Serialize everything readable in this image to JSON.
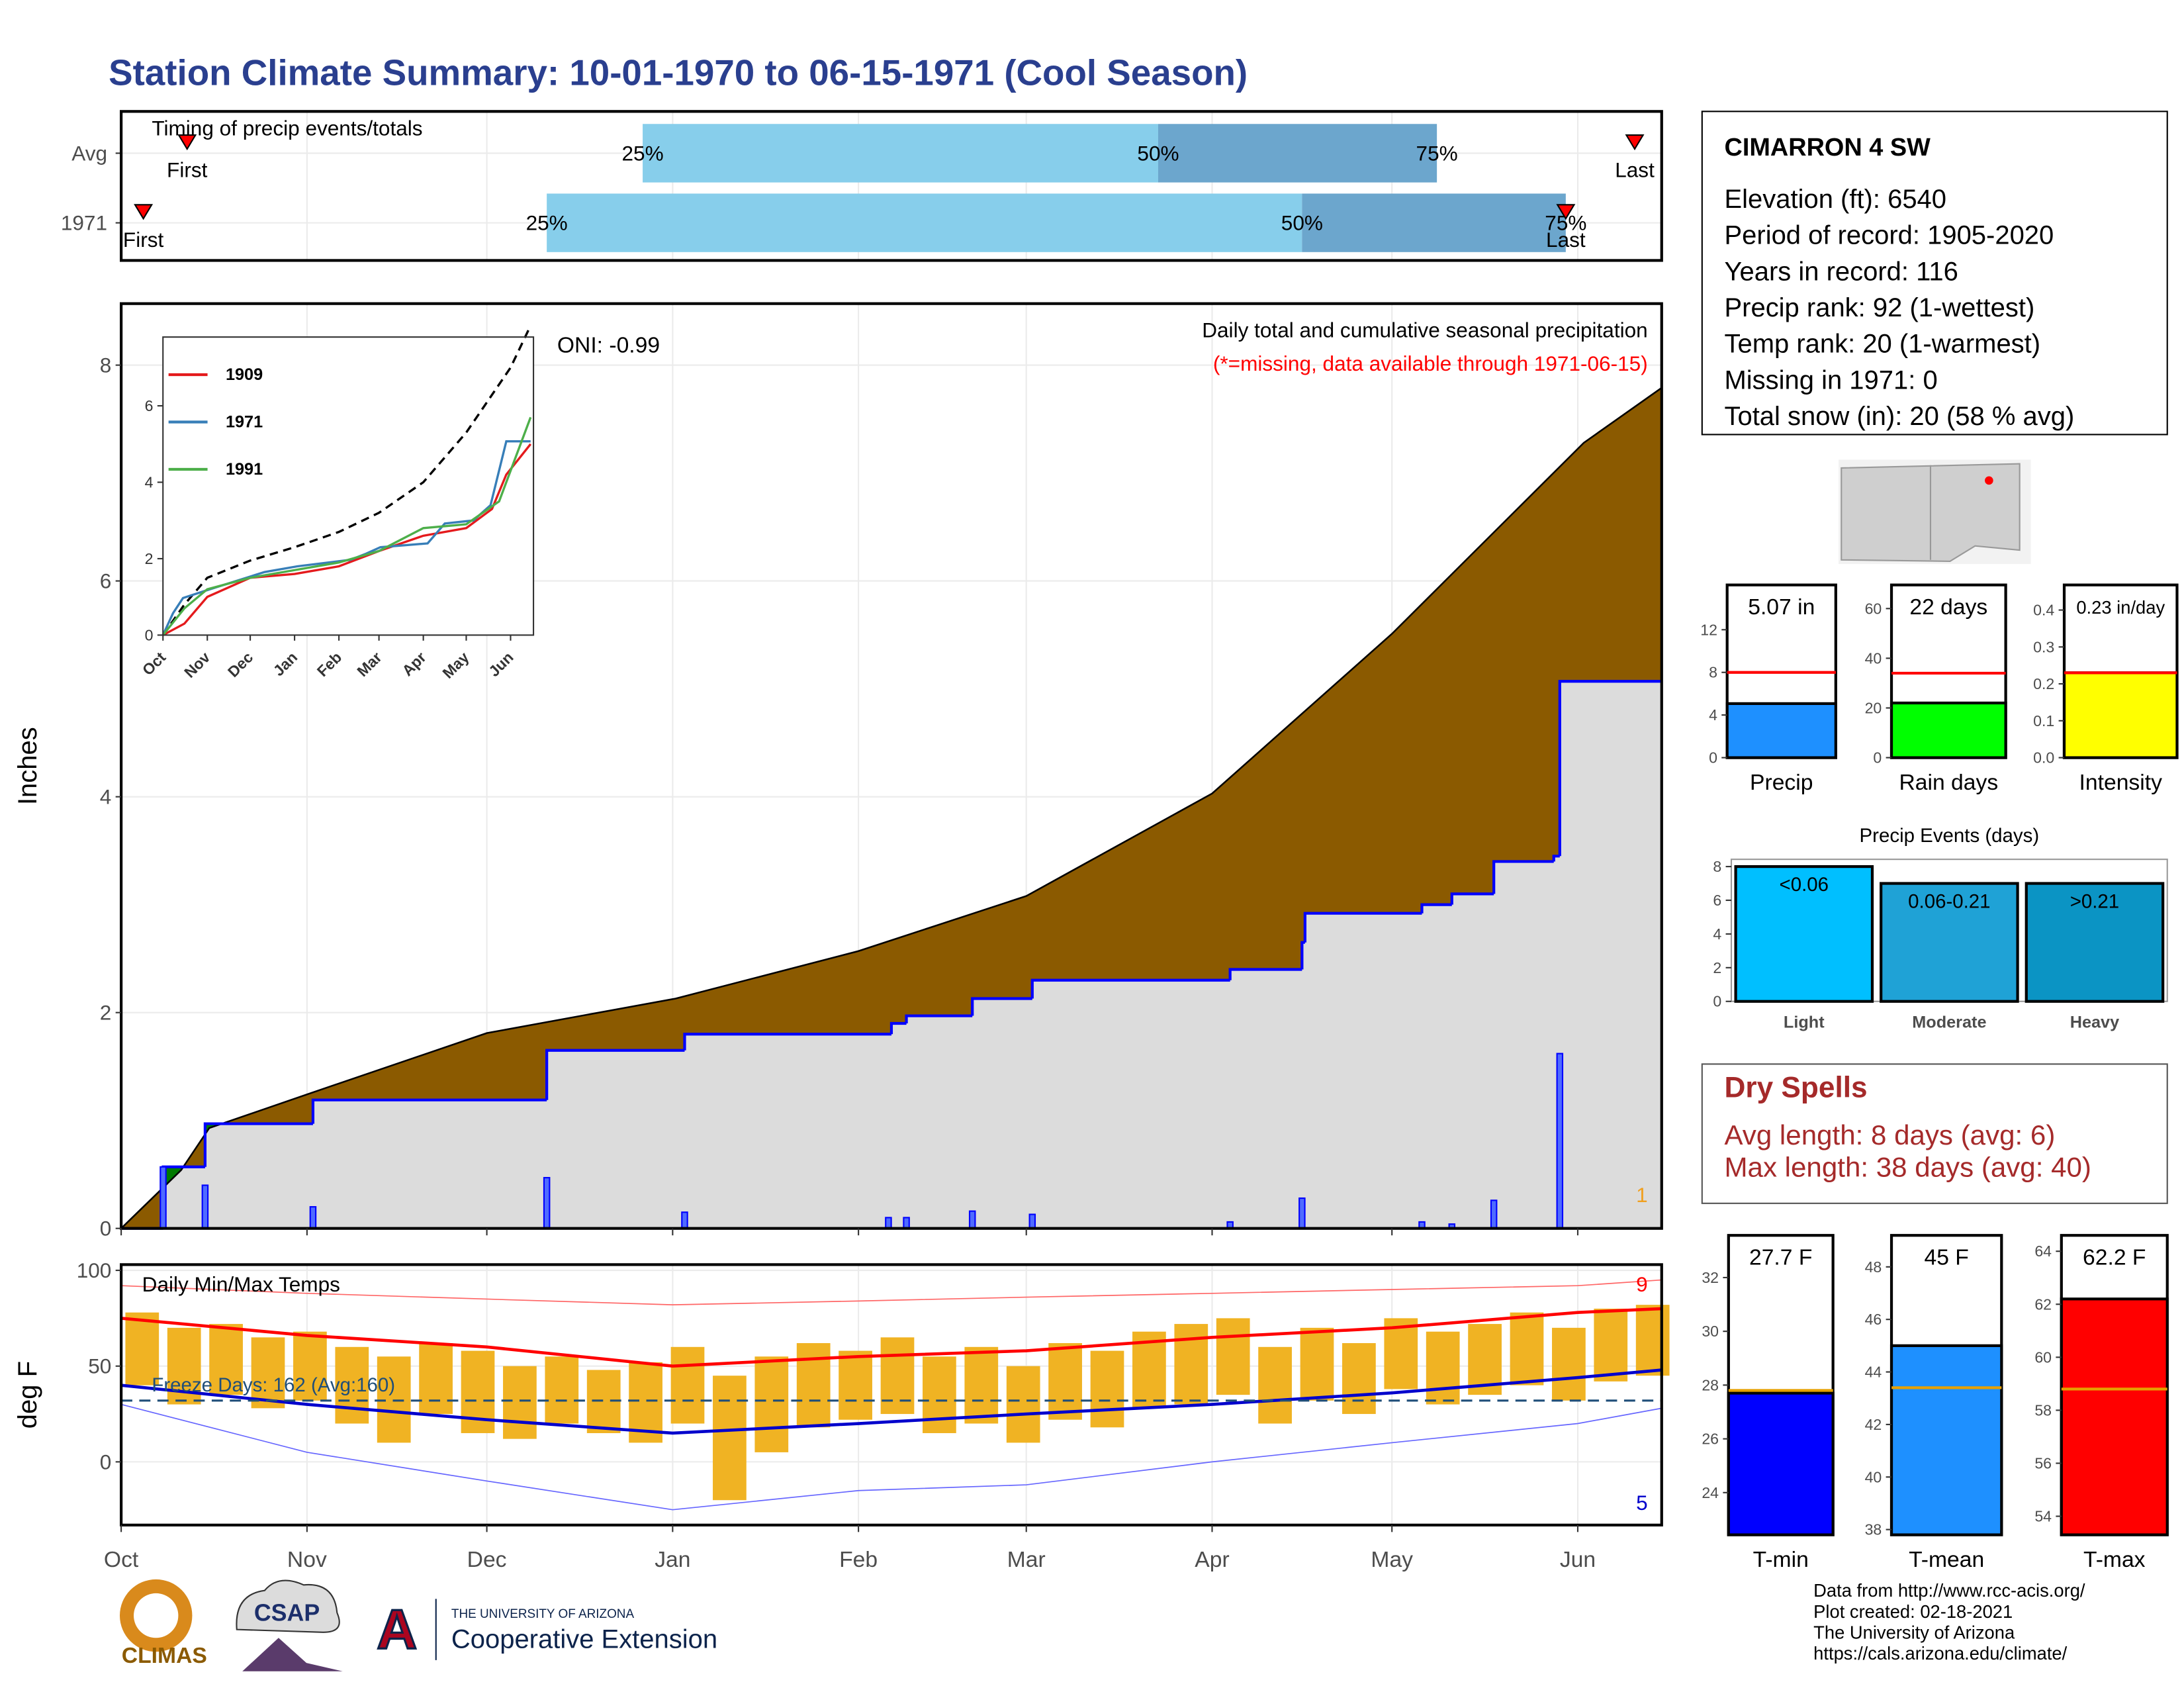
{
  "title": "Station Climate Summary: 10-01-1970 to 06-15-1971 (Cool Season)",
  "station": {
    "name": "CIMARRON 4 SW",
    "lines": [
      "Elevation (ft): 6540",
      "Period of record: 1905-2020",
      "Years in record: 116",
      "Precip rank: 92 (1-wettest)",
      "Temp rank: 20 (1-warmest)",
      "Missing in 1971: 0",
      "Total snow (in): 20 (58 % avg)"
    ]
  },
  "dry_spells": {
    "title": "Dry Spells",
    "lines": [
      "Avg length: 8 days (avg: 6)",
      "Max length: 38 days (avg: 40)"
    ]
  },
  "logos": [
    "CLIMAS",
    "CSAP",
    "THE UNIVERSITY OF ARIZONA",
    "Cooperative Extension",
    "A"
  ],
  "credits": [
    "Data from http://www.rcc-acis.org/",
    "Plot created: 02-18-2021",
    "The University of Arizona",
    "https://cals.arizona.edu/climate/"
  ],
  "chart_data": [
    {
      "type": "timeline",
      "title": "Timing of precip events/totals",
      "categories": [
        "Avg",
        "1971"
      ],
      "xlim": [
        0,
        257
      ],
      "first": [
        11,
        3.7
      ],
      "q25": [
        87,
        71
      ],
      "q50": [
        173,
        197
      ],
      "q75": [
        219.5,
        241
      ],
      "last": [
        252.5,
        241
      ],
      "q_labels": [
        "25%",
        "50%",
        "75%"
      ],
      "point_labels": [
        "First",
        "Last"
      ],
      "colors": [
        "#87ceeb",
        "#6ca6cd"
      ],
      "marker_color": "#ff0000"
    },
    {
      "type": "area",
      "title": "Daily total and cumulative seasonal precipitation",
      "subtitle": "(*=missing, data available through 1971-06-15)",
      "annotation": "ONI: -0.99",
      "corner_label": "1",
      "ylabel": "Inches",
      "xlim": [
        0,
        257
      ],
      "ylim": [
        0,
        8.57
      ],
      "yticks": [
        0,
        2,
        4,
        6,
        8
      ],
      "grid": true,
      "average": {
        "color": "#8b5a00",
        "x": [
          0,
          10,
          14.7,
          33,
          61,
          92.5,
          123,
          151,
          182,
          212,
          244,
          257
        ],
        "values": [
          0,
          0.54,
          0.93,
          1.28,
          1.81,
          2.13,
          2.57,
          3.08,
          4.03,
          5.51,
          7.28,
          7.79
        ]
      },
      "season": {
        "color": "#0000ff",
        "x": [
          0,
          7,
          14,
          32,
          71,
          94,
          128.5,
          131,
          142,
          152,
          185,
          197,
          197.5,
          217,
          222,
          229,
          239,
          240
        ],
        "values": [
          0,
          0.57,
          0.97,
          1.19,
          1.65,
          1.8,
          1.9,
          1.97,
          2.13,
          2.3,
          2.4,
          2.65,
          2.92,
          3.0,
          3.1,
          3.4,
          3.45,
          5.07
        ]
      },
      "daily": {
        "color": "#4f6bff",
        "x": [
          7,
          14,
          32,
          71,
          94,
          128,
          131,
          142,
          152,
          185,
          197,
          217,
          222,
          229,
          240
        ],
        "values": [
          0.57,
          0.4,
          0.2,
          0.47,
          0.15,
          0.1,
          0.1,
          0.16,
          0.13,
          0.06,
          0.28,
          0.06,
          0.04,
          0.26,
          1.62
        ]
      },
      "above_color": "#007a00",
      "below_color": "#dcdcdc"
    },
    {
      "type": "line",
      "xlim": [
        0,
        259
      ],
      "ylim": [
        0,
        7.8
      ],
      "yticks": [
        0,
        2,
        4,
        6
      ],
      "xticks": [
        {
          "value": 0,
          "label": "Oct"
        },
        {
          "value": 31,
          "label": "Nov"
        },
        {
          "value": 61,
          "label": "Dec"
        },
        {
          "value": 92,
          "label": "Jan"
        },
        {
          "value": 123,
          "label": "Feb"
        },
        {
          "value": 151,
          "label": "Mar"
        },
        {
          "value": 182,
          "label": "Apr"
        },
        {
          "value": 212,
          "label": "May"
        },
        {
          "value": 243,
          "label": "Jun"
        }
      ],
      "average": {
        "color": "#000000",
        "x": [
          0,
          15,
          31,
          61,
          92,
          123,
          151,
          182,
          212,
          243,
          257
        ],
        "values": [
          0,
          0.8,
          1.5,
          1.95,
          2.3,
          2.7,
          3.2,
          4.0,
          5.3,
          7.0,
          8.1
        ]
      },
      "series": [
        {
          "name": "1909",
          "color": "#e41a1c",
          "x": [
            0,
            15,
            31,
            61,
            92,
            123,
            151,
            182,
            212,
            230,
            240,
            257
          ],
          "values": [
            0,
            0.3,
            1.0,
            1.5,
            1.6,
            1.8,
            2.2,
            2.6,
            2.8,
            3.3,
            4.2,
            5.0
          ]
        },
        {
          "name": "1971",
          "color": "#377eb8",
          "x": [
            0,
            7,
            14,
            32,
            71,
            94,
            131,
            142,
            152,
            185,
            197,
            217,
            229,
            240,
            257
          ],
          "values": [
            0,
            0.57,
            0.97,
            1.19,
            1.65,
            1.8,
            1.97,
            2.13,
            2.3,
            2.4,
            2.92,
            3.0,
            3.4,
            5.07,
            5.07
          ]
        },
        {
          "name": "1991",
          "color": "#4daf4a",
          "x": [
            0,
            15,
            31,
            61,
            92,
            123,
            151,
            182,
            212,
            235,
            245,
            257
          ],
          "values": [
            0,
            0.7,
            1.2,
            1.5,
            1.7,
            1.9,
            2.2,
            2.8,
            2.9,
            3.5,
            4.5,
            5.7
          ]
        }
      ]
    },
    {
      "type": "range",
      "title": "Daily Min/Max Temps",
      "ylabel": "deg F",
      "freeze_label": "Freeze Days: 162 (Avg:160)",
      "high_count": "9",
      "low_count": "5",
      "freeze": 32,
      "xlim": [
        0,
        257
      ],
      "ylim": [
        -33,
        103
      ],
      "yticks": [
        0,
        50,
        100
      ],
      "grid": true,
      "xticks": [
        {
          "value": 0,
          "label": "Oct"
        },
        {
          "value": 31,
          "label": "Nov"
        },
        {
          "value": 61,
          "label": "Dec"
        },
        {
          "value": 92,
          "label": "Jan"
        },
        {
          "value": 123,
          "label": "Feb"
        },
        {
          "value": 151,
          "label": "Mar"
        },
        {
          "value": 182,
          "label": "Apr"
        },
        {
          "value": 212,
          "label": "May"
        },
        {
          "value": 243,
          "label": "Jun"
        }
      ],
      "x": [
        0,
        7,
        14,
        21,
        28,
        35,
        42,
        49,
        56,
        63,
        70,
        77,
        84,
        91,
        98,
        105,
        112,
        119,
        126,
        133,
        140,
        147,
        154,
        161,
        168,
        175,
        182,
        189,
        196,
        203,
        210,
        217,
        224,
        231,
        238,
        245,
        252
      ],
      "max": [
        78,
        70,
        72,
        65,
        68,
        60,
        55,
        62,
        58,
        50,
        55,
        48,
        52,
        60,
        45,
        55,
        62,
        58,
        65,
        55,
        60,
        50,
        62,
        58,
        68,
        72,
        75,
        60,
        70,
        62,
        75,
        68,
        72,
        78,
        70,
        80,
        82
      ],
      "min": [
        40,
        30,
        35,
        28,
        32,
        20,
        10,
        25,
        15,
        12,
        20,
        15,
        10,
        20,
        -20,
        5,
        18,
        22,
        25,
        15,
        20,
        10,
        22,
        18,
        28,
        30,
        35,
        20,
        32,
        25,
        38,
        30,
        35,
        40,
        32,
        42,
        45
      ],
      "bar_color": "#f0b323",
      "avg_x": [
        0,
        31,
        61,
        92,
        123,
        151,
        182,
        212,
        243,
        257
      ],
      "avg_max": {
        "color": "#ff0000",
        "values": [
          75,
          66,
          60,
          50,
          55,
          58,
          65,
          70,
          78,
          80
        ]
      },
      "avg_min": {
        "color": "#0000cc",
        "values": [
          40,
          30,
          22,
          15,
          20,
          25,
          30,
          36,
          44,
          48
        ]
      },
      "record_high": {
        "color": "#ff6666",
        "values": [
          92,
          88,
          85,
          82,
          84,
          86,
          88,
          90,
          92,
          95
        ]
      },
      "record_low": {
        "color": "#6666ff",
        "values": [
          30,
          5,
          -10,
          -25,
          -15,
          -12,
          0,
          10,
          20,
          28
        ]
      },
      "freeze_color": "#1f4e79"
    },
    {
      "type": "bar",
      "categories": [
        "Precip"
      ],
      "values": [
        5.07
      ],
      "value_labels": [
        "5.07 in"
      ],
      "avg": 8,
      "avg_color": "#ff0000",
      "color": "#1e90ff",
      "ylim": [
        0,
        16.2
      ],
      "yticks": [
        0,
        4,
        8,
        12
      ]
    },
    {
      "type": "bar",
      "categories": [
        "Rain days"
      ],
      "values": [
        22
      ],
      "value_labels": [
        "22 days"
      ],
      "avg": 34,
      "avg_color": "#ff0000",
      "color": "#00ff00",
      "ylim": [
        0,
        69.5
      ],
      "yticks": [
        0,
        20,
        40,
        60
      ]
    },
    {
      "type": "bar",
      "categories": [
        "Intensity"
      ],
      "values": [
        0.23
      ],
      "value_labels": [
        "0.23 in/day"
      ],
      "avg": 0.23,
      "avg_color": "#ff0000",
      "color": "#ffff00",
      "ylim": [
        0,
        0.468
      ],
      "yticks": [
        {
          "value": 0,
          "label": "0.0"
        },
        0.1,
        0.2,
        0.3,
        0.4
      ]
    },
    {
      "type": "bar",
      "title": "Precip Events (days)",
      "categories": [
        "Light",
        "Moderate",
        "Heavy"
      ],
      "bin_labels": [
        "<0.06",
        "0.06-0.21",
        ">0.21"
      ],
      "values": [
        8,
        7,
        7
      ],
      "colors": [
        "#00bfff",
        "#1fa2d6",
        "#0b94c4"
      ],
      "ylim": [
        0,
        8.43
      ],
      "yticks": [
        0,
        2,
        4,
        6,
        8
      ]
    },
    {
      "type": "bar",
      "categories": [
        "T-min"
      ],
      "values": [
        27.7
      ],
      "value_labels": [
        "27.7 F"
      ],
      "avg": 27.8,
      "avg_color": "#e6a000",
      "color": "#0000ff",
      "ylim": [
        22.43,
        33.57
      ],
      "yticks": [
        24,
        26,
        28,
        30,
        32
      ]
    },
    {
      "type": "bar",
      "categories": [
        "T-mean"
      ],
      "values": [
        45
      ],
      "value_labels": [
        "45 F"
      ],
      "avg": 43.4,
      "avg_color": "#e6a000",
      "color": "#1e90ff",
      "ylim": [
        37.8,
        49.2
      ],
      "yticks": [
        38,
        40,
        42,
        44,
        46,
        48
      ]
    },
    {
      "type": "bar",
      "categories": [
        "T-max"
      ],
      "values": [
        62.2
      ],
      "value_labels": [
        "62.2 F"
      ],
      "avg": 58.8,
      "avg_color": "#e6a000",
      "color": "#ff0000",
      "ylim": [
        53.3,
        64.6
      ],
      "yticks": [
        54,
        56,
        58,
        60,
        62,
        64
      ]
    }
  ]
}
